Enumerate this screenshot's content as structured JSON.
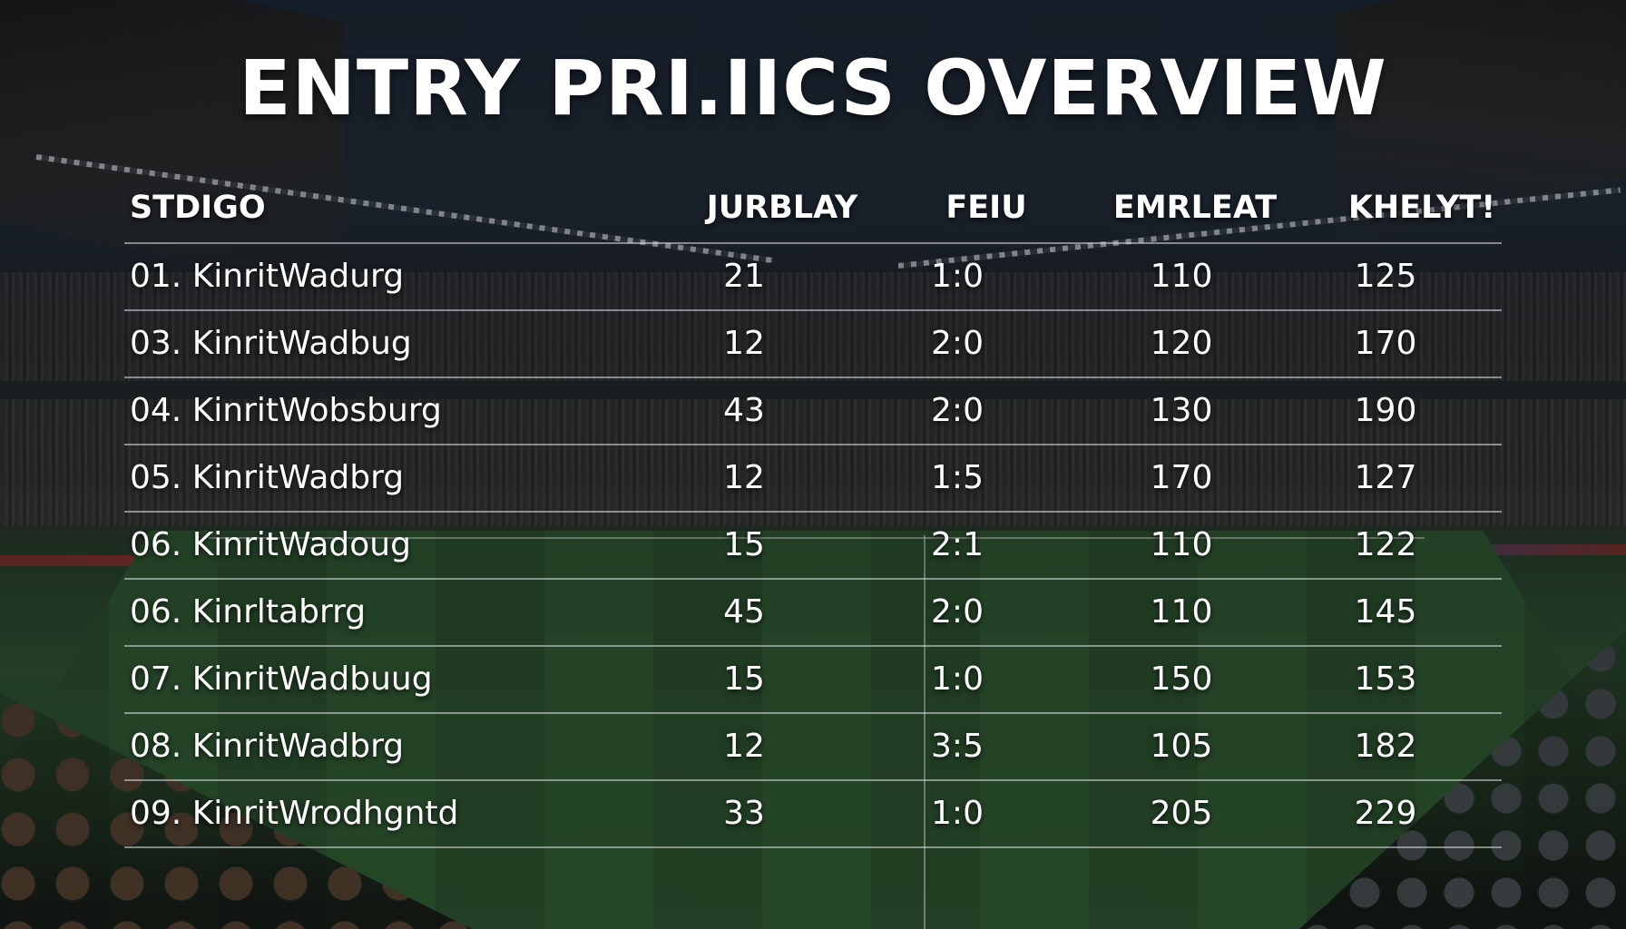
{
  "title": "ENTRY PRI.IICS OVERVIEW",
  "table": {
    "headers": [
      "STDIGO",
      "JURBLAY",
      "FEIU",
      "EMRLEAT",
      "KHELYT!"
    ],
    "rows": [
      {
        "name": "01. KinritWadurg",
        "v1": "21",
        "v2": "1:0",
        "v3": "110",
        "v4": "125"
      },
      {
        "name": "03. KinritWadbug",
        "v1": "12",
        "v2": "2:0",
        "v3": "120",
        "v4": "170"
      },
      {
        "name": "04. KinritWobsburg",
        "v1": "43",
        "v2": "2:0",
        "v3": "130",
        "v4": "190"
      },
      {
        "name": "05. KinritWadbrg",
        "v1": "12",
        "v2": "1:5",
        "v3": "170",
        "v4": "127"
      },
      {
        "name": "06. KinritWadoug",
        "v1": "15",
        "v2": "2:1",
        "v3": "110",
        "v4": "122"
      },
      {
        "name": "06. Kinrltabrrg",
        "v1": "45",
        "v2": "2:0",
        "v3": "110",
        "v4": "145"
      },
      {
        "name": "07. KinritWadbuug",
        "v1": "15",
        "v2": "1:0",
        "v3": "150",
        "v4": "153"
      },
      {
        "name": "08. KinritWadbrg",
        "v1": "12",
        "v2": "3:5",
        "v3": "105",
        "v4": "182"
      },
      {
        "name": "09. KinritWrodhgntd",
        "v1": "33",
        "v2": "1:0",
        "v3": "205",
        "v4": "229"
      }
    ]
  }
}
